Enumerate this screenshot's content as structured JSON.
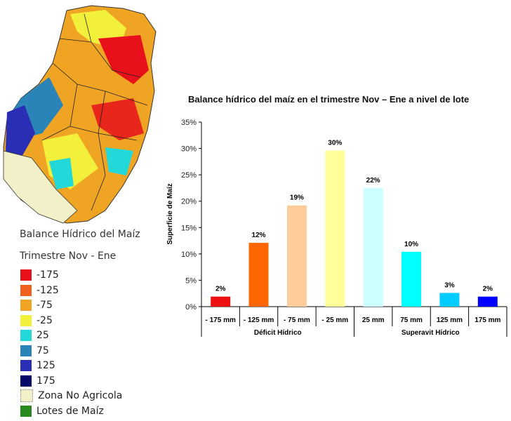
{
  "legend": {
    "title": "Balance Hídrico del Maíz",
    "subtitle": "Trimestre Nov - Ene",
    "items": [
      {
        "label": "-175",
        "color": "#e8101a"
      },
      {
        "label": "-125",
        "color": "#f0601e"
      },
      {
        "label": "-75",
        "color": "#f0a424"
      },
      {
        "label": "-25",
        "color": "#f2f03a"
      },
      {
        "label": "25",
        "color": "#22d8d8"
      },
      {
        "label": "75",
        "color": "#2a84b8"
      },
      {
        "label": "125",
        "color": "#2a2eb4"
      },
      {
        "label": "175",
        "color": "#08086a"
      },
      {
        "label": "Zona No Agricola",
        "color": "#f2f0c8"
      },
      {
        "label": "Lotes de Maíz",
        "color": "#2a8a22"
      }
    ]
  },
  "chart_data": {
    "type": "bar",
    "title": "Balance hídrico del maíz en el trimestre Nov – Ene a nivel de lote",
    "ylabel": "Superficie de Maíz",
    "ylim": [
      0,
      35
    ],
    "yticks": [
      "0%",
      "5%",
      "10%",
      "15%",
      "20%",
      "25%",
      "30%",
      "35%"
    ],
    "categories": [
      "- 175 mm",
      "- 125 mm",
      "- 75 mm",
      "- 25 mm",
      "25 mm",
      "75 mm",
      "125 mm",
      "175 mm"
    ],
    "values": [
      1.9,
      12.1,
      19.2,
      29.6,
      22.5,
      10.4,
      2.6,
      1.9
    ],
    "data_labels": [
      "2%",
      "12%",
      "19%",
      "30%",
      "22%",
      "10%",
      "3%",
      "2%"
    ],
    "colors": [
      "#ee1111",
      "#ff6600",
      "#ffcc99",
      "#ffff99",
      "#ccffff",
      "#00ffff",
      "#00ccff",
      "#0000ff"
    ],
    "groups": [
      {
        "label": "Déficit Hídrico",
        "span": 4
      },
      {
        "label": "Superavit Hídrico",
        "span": 4
      }
    ],
    "grid": false
  }
}
